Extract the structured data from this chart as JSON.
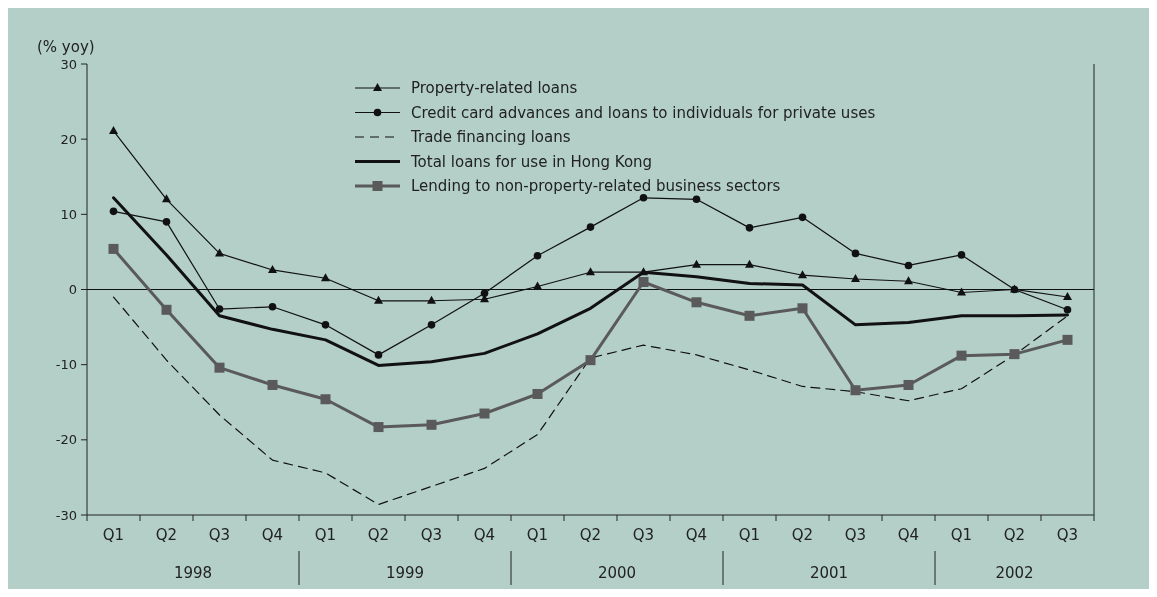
{
  "chart_data": {
    "type": "line",
    "ylabel": "(% yoy)",
    "categories": [
      "Q1",
      "Q2",
      "Q3",
      "Q4",
      "Q1",
      "Q2",
      "Q3",
      "Q4",
      "Q1",
      "Q2",
      "Q3",
      "Q4",
      "Q1",
      "Q2",
      "Q3",
      "Q4",
      "Q1",
      "Q2",
      "Q3"
    ],
    "ylim": [
      -30,
      30
    ],
    "yticks": [
      -30,
      -20,
      -10,
      0,
      10,
      20,
      30
    ],
    "series": [
      {
        "name": "Property-related loans",
        "color": "#111111",
        "marker": "triangle",
        "line_style": "solid",
        "values": [
          21.1,
          12.0,
          4.8,
          2.6,
          1.5,
          -1.5,
          -1.5,
          -1.3,
          0.4,
          2.3,
          2.3,
          3.3,
          3.3,
          1.9,
          1.4,
          1.1,
          -0.4,
          0,
          -1.0
        ]
      },
      {
        "name": "Credit card advances and loans to individuals for private uses",
        "color": "#111111",
        "marker": "circle",
        "line_style": "solid",
        "values": [
          10.4,
          9.0,
          -2.6,
          -2.3,
          -4.7,
          -8.7,
          -4.7,
          -0.5,
          4.5,
          8.3,
          12.2,
          12.0,
          8.2,
          9.6,
          4.8,
          3.2,
          4.6,
          0,
          -2.7
        ]
      },
      {
        "name": "Trade financing loans",
        "color": "#111111",
        "marker": "none",
        "line_style": "dashed",
        "values": [
          -1.0,
          -9.4,
          -16.7,
          -22.7,
          -24.4,
          -28.6,
          -26.2,
          -23.8,
          -19.3,
          -9.1,
          -7.4,
          -8.7,
          -10.7,
          -12.9,
          -13.6,
          -14.8,
          -13.2,
          -8.7,
          -3.5
        ]
      },
      {
        "name": "Total loans for use in Hong Kong",
        "color": "#111111",
        "marker": "none",
        "line_style": "solid",
        "values": [
          12.2,
          4.6,
          -3.5,
          -5.3,
          -6.7,
          -10.1,
          -9.6,
          -8.5,
          -5.9,
          -2.5,
          2.3,
          1.7,
          0.8,
          0.6,
          -4.7,
          -4.4,
          -3.5,
          -3.5,
          -3.4
        ]
      },
      {
        "name": "Lending to non-property-related business sectors",
        "color": "#5a5a5a",
        "marker": "square",
        "line_style": "solid",
        "values": [
          5.4,
          -2.7,
          -10.4,
          -12.7,
          -14.6,
          -18.3,
          -18.0,
          -16.5,
          -13.9,
          -9.4,
          1.0,
          -1.7,
          -3.5,
          -2.5,
          -13.4,
          -12.7,
          -8.8,
          -8.6,
          -6.7
        ]
      }
    ],
    "ref_lines": [
      {
        "axis": "y",
        "value": 0,
        "color": "#111111"
      }
    ],
    "annotations": [
      "1998",
      "1999",
      "2000",
      "2001",
      "2002"
    ],
    "legend": "top",
    "grid": false
  }
}
